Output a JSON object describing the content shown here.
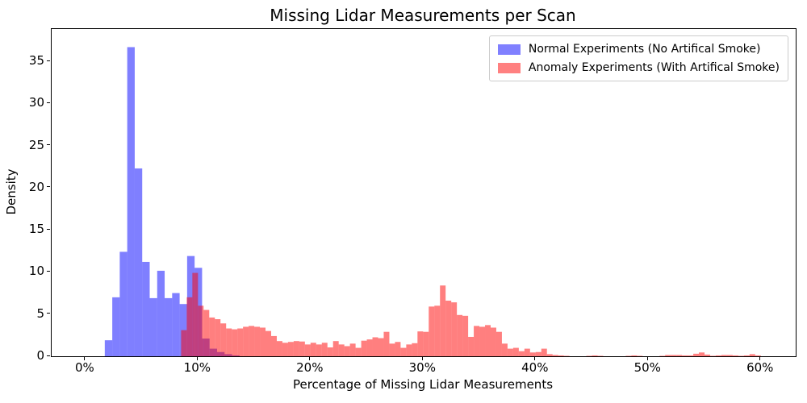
{
  "figure": {
    "background": "#ffffff",
    "frame_color": "#000000"
  },
  "chart_data": {
    "type": "bar",
    "subtype": "histogram",
    "title": "Missing Lidar Measurements per Scan",
    "xlabel": "Percentage of Missing Lidar Measurements",
    "ylabel": "Density",
    "xlim": [
      -3.0,
      63.1
    ],
    "ylim": [
      0,
      38.85
    ],
    "grid": false,
    "x_ticks": [
      {
        "value": 0,
        "label": "0%"
      },
      {
        "value": 10,
        "label": "10%"
      },
      {
        "value": 20,
        "label": "20%"
      },
      {
        "value": 30,
        "label": "30%"
      },
      {
        "value": 40,
        "label": "40%"
      },
      {
        "value": 50,
        "label": "50%"
      },
      {
        "value": 60,
        "label": "60%"
      }
    ],
    "y_ticks": [
      0,
      5,
      10,
      15,
      20,
      25,
      30,
      35
    ],
    "legend": {
      "position": "upper right",
      "border_color": "#cccccc"
    },
    "series": [
      {
        "name": "Normal Experiments (No Artifical Smoke)",
        "fill": "rgba(0,0,255,0.5)",
        "legend_color": "#8080ff",
        "bin_start": 1.72,
        "bin_width": 0.665,
        "x_unit": "percent",
        "heights": [
          1.9,
          7.0,
          12.4,
          36.7,
          22.3,
          11.2,
          6.9,
          10.15,
          6.9,
          7.5,
          6.2,
          11.9,
          10.5,
          2.1,
          0.9,
          0.5,
          0.25,
          0.1
        ]
      },
      {
        "name": "Anomaly Experiments (With Artifical Smoke)",
        "fill": "rgba(255,0,0,0.5)",
        "legend_color": "#ff8080",
        "bin_start": 8.5,
        "bin_width": 0.5,
        "x_unit": "percent",
        "heights": [
          3.1,
          7.0,
          9.9,
          6.0,
          5.5,
          4.6,
          4.4,
          3.9,
          3.3,
          3.2,
          3.3,
          3.5,
          3.6,
          3.5,
          3.4,
          3.0,
          2.4,
          1.8,
          1.6,
          1.7,
          1.8,
          1.75,
          1.4,
          1.6,
          1.4,
          1.6,
          1.05,
          1.8,
          1.4,
          1.2,
          1.5,
          1.0,
          1.85,
          2.0,
          2.25,
          2.15,
          2.9,
          1.5,
          1.7,
          1.0,
          1.4,
          1.55,
          2.95,
          2.9,
          5.9,
          6.0,
          8.4,
          6.6,
          6.4,
          4.9,
          4.8,
          2.3,
          3.6,
          3.5,
          3.7,
          3.4,
          2.9,
          1.5,
          0.9,
          1.0,
          0.6,
          0.9,
          0.45,
          0.5,
          0.9,
          0.25,
          0.15,
          0.1,
          0.05,
          0,
          0,
          0,
          0.05,
          0.1,
          0.05,
          0,
          0,
          0,
          0,
          0.05,
          0.1,
          0.05,
          0,
          0,
          0,
          0.05,
          0.15,
          0.15,
          0.15,
          0.1,
          0.1,
          0.3,
          0.45,
          0.2,
          0.05,
          0.1,
          0.15,
          0.15,
          0.1,
          0.05,
          0.1,
          0.25,
          0.1
        ]
      }
    ]
  }
}
